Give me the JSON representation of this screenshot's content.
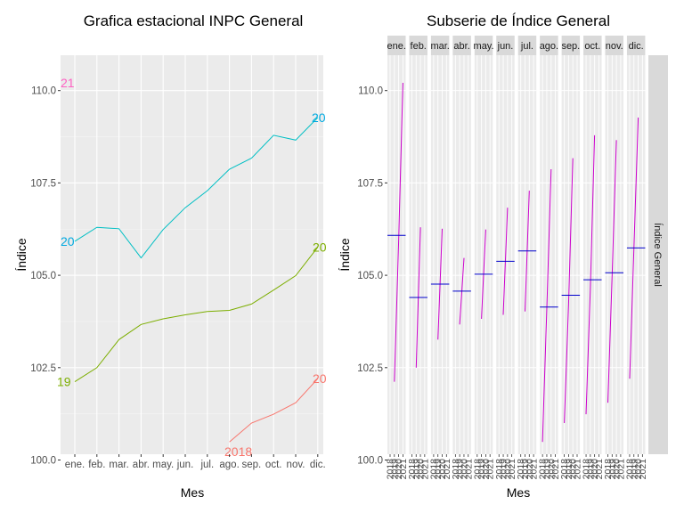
{
  "chart_data": [
    {
      "type": "line",
      "title": "Grafica estacional INPC General",
      "xlabel": "Mes",
      "ylabel": "Índice",
      "categories": [
        "ene.",
        "feb.",
        "mar.",
        "abr.",
        "may.",
        "jun.",
        "jul.",
        "ago.",
        "sep.",
        "oct.",
        "nov.",
        "dic."
      ],
      "ylim": [
        100.0,
        110.8
      ],
      "yticks": [
        "100.0",
        "102.5",
        "105.0",
        "107.5",
        "110.0"
      ],
      "grid": true,
      "series": [
        {
          "label": "2018",
          "color": "#F8766D",
          "values": [
            null,
            null,
            null,
            null,
            null,
            null,
            null,
            100.49,
            101.0,
            101.24,
            101.55,
            102.2
          ]
        },
        {
          "label": "2019",
          "color": "#7CAE00",
          "values": [
            102.12,
            102.5,
            103.26,
            103.67,
            103.82,
            103.93,
            104.02,
            104.05,
            104.22,
            104.6,
            104.99,
            105.76
          ]
        },
        {
          "label": "2020",
          "color": "#00BFC4",
          "values": [
            105.92,
            106.3,
            106.26,
            105.47,
            106.24,
            106.83,
            107.29,
            107.87,
            108.17,
            108.79,
            108.66,
            109.27
          ]
        },
        {
          "label": "2021",
          "color": "#C77CFF",
          "values": [
            110.21,
            null,
            null,
            null,
            null,
            null,
            null,
            null,
            null,
            null,
            null,
            null
          ]
        }
      ],
      "line_labels": [
        {
          "text": "2018",
          "color": "#F8766D"
        },
        {
          "text": "19",
          "color": "#7CAE00"
        },
        {
          "text": "20",
          "color": "#7CAE00"
        },
        {
          "text": "20",
          "color": "#00A9E0"
        },
        {
          "text": "20",
          "color": "#00A9E0"
        },
        {
          "text": "20",
          "color": "#F8766D"
        },
        {
          "text": "21",
          "color": "#FF61C3"
        }
      ]
    },
    {
      "type": "line",
      "title": "Subserie de Índice General",
      "xlabel": "Mes",
      "ylabel": "Índice",
      "facet_strip": "Índice General",
      "months": [
        "ene.",
        "feb.",
        "mar.",
        "abr.",
        "may.",
        "jun.",
        "jul.",
        "ago.",
        "sep.",
        "oct.",
        "nov.",
        "dic."
      ],
      "year_ticks": [
        "2018",
        "2019",
        "2020",
        "2021"
      ],
      "ylim": [
        100.0,
        110.8
      ],
      "yticks": [
        "100.0",
        "102.5",
        "105.0",
        "107.5",
        "110.0"
      ],
      "line_color": "#CC00CC",
      "mean_color": "#0000CC",
      "month_series": [
        {
          "values": [
            null,
            102.12,
            105.92,
            110.21
          ],
          "mean": 106.08
        },
        {
          "values": [
            null,
            102.5,
            106.3,
            null
          ],
          "mean": 104.4
        },
        {
          "values": [
            null,
            103.26,
            106.26,
            null
          ],
          "mean": 104.76
        },
        {
          "values": [
            null,
            103.67,
            105.47,
            null
          ],
          "mean": 104.57
        },
        {
          "values": [
            null,
            103.82,
            106.24,
            null
          ],
          "mean": 105.03
        },
        {
          "values": [
            null,
            103.93,
            106.83,
            null
          ],
          "mean": 105.38
        },
        {
          "values": [
            null,
            104.02,
            107.29,
            null
          ],
          "mean": 105.66
        },
        {
          "values": [
            100.49,
            104.05,
            107.87,
            null
          ],
          "mean": 104.14
        },
        {
          "values": [
            101.0,
            104.22,
            108.17,
            null
          ],
          "mean": 104.46
        },
        {
          "values": [
            101.24,
            104.6,
            108.79,
            null
          ],
          "mean": 104.88
        },
        {
          "values": [
            101.55,
            104.99,
            108.66,
            null
          ],
          "mean": 105.07
        },
        {
          "values": [
            102.2,
            105.76,
            109.27,
            null
          ],
          "mean": 105.74
        }
      ]
    }
  ]
}
